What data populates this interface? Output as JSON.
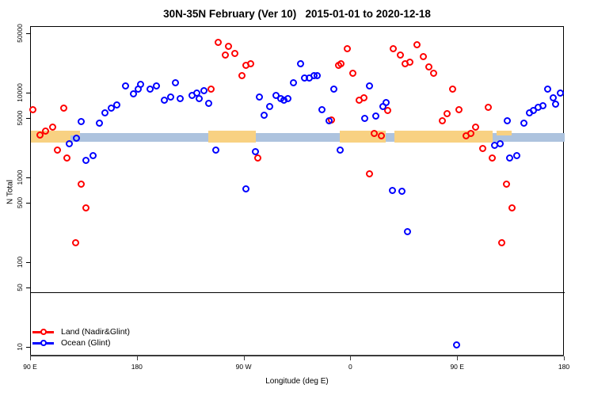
{
  "chart_data": {
    "type": "scatter",
    "title": "30N-35N February (Ver 10)   2015-01-01 to 2020-12-18",
    "xlabel": "Longitude (deg E)",
    "ylabel": "N Total",
    "x_axis": {
      "range_deg_e": [
        90,
        540
      ],
      "ticks": [
        {
          "lon": 90,
          "label": "90 E"
        },
        {
          "lon": 180,
          "label": "180"
        },
        {
          "lon": 270,
          "label": "90 W"
        },
        {
          "lon": 360,
          "label": "0"
        },
        {
          "lon": 450,
          "label": "90 E"
        },
        {
          "lon": 540,
          "label": "180"
        }
      ]
    },
    "y_axis": {
      "scale": "log",
      "range": [
        10,
        50000
      ],
      "ticks": [
        50000,
        10000,
        5000,
        1000,
        500,
        100,
        50,
        10
      ]
    },
    "hline_value": 45,
    "coast_band": {
      "comment": "horizontal land/ocean strip drawn near N=3500",
      "ocean_color": "#adc3de",
      "land_color": "#f8d182",
      "ocean_extent": [
        90,
        540
      ],
      "land_segments": [
        [
          90,
          123.5
        ],
        [
          239.5,
          279.5
        ],
        [
          350.5,
          389
        ],
        [
          396.5,
          479.5
        ]
      ],
      "land_partial_segments": [
        [
          121,
          131.5
        ],
        [
          482.5,
          495.5
        ]
      ],
      "legend_position": "bottom-left",
      "grid": "off"
    },
    "series": [
      {
        "id": "land",
        "name": "Land (Nadir&Glint)",
        "color": "#ff0000",
        "marker": "open-circle",
        "points": [
          [
            92,
            6300
          ],
          [
            118,
            6600
          ],
          [
            98,
            3200
          ],
          [
            103,
            3500
          ],
          [
            109,
            3900
          ],
          [
            113,
            2100
          ],
          [
            121,
            1700
          ],
          [
            133,
            840
          ],
          [
            137,
            440
          ],
          [
            128,
            170
          ],
          [
            242,
            11000
          ],
          [
            248,
            39000
          ],
          [
            254,
            28000
          ],
          [
            257,
            35000
          ],
          [
            262,
            29000
          ],
          [
            268,
            16000
          ],
          [
            272,
            21000
          ],
          [
            276,
            22000
          ],
          [
            282,
            1700
          ],
          [
            344,
            4800
          ],
          [
            350,
            21000
          ],
          [
            352,
            22000
          ],
          [
            357,
            33000
          ],
          [
            362,
            17000
          ],
          [
            367,
            8200
          ],
          [
            371,
            8700
          ],
          [
            376,
            1100
          ],
          [
            380,
            3300
          ],
          [
            386,
            3100
          ],
          [
            391,
            6200
          ],
          [
            396,
            33000
          ],
          [
            402,
            28000
          ],
          [
            406,
            22000
          ],
          [
            410,
            23000
          ],
          [
            416,
            37000
          ],
          [
            421,
            27000
          ],
          [
            426,
            20000
          ],
          [
            430,
            17000
          ],
          [
            437,
            4700
          ],
          [
            441,
            5700
          ],
          [
            446,
            11000
          ],
          [
            451,
            6300
          ],
          [
            457,
            3100
          ],
          [
            461,
            3300
          ],
          [
            465,
            3900
          ],
          [
            471,
            2200
          ],
          [
            476,
            6800
          ],
          [
            479,
            1700
          ],
          [
            487,
            170
          ],
          [
            491,
            840
          ],
          [
            496,
            440
          ]
        ]
      },
      {
        "id": "ocean",
        "name": "Ocean (Glint)",
        "color": "#0000ff",
        "marker": "open-circle",
        "points": [
          [
            133,
            4600
          ],
          [
            148,
            4400
          ],
          [
            123,
            2500
          ],
          [
            129,
            2900
          ],
          [
            137,
            1600
          ],
          [
            143,
            1800
          ],
          [
            153,
            5800
          ],
          [
            158,
            6600
          ],
          [
            163,
            7200
          ],
          [
            170,
            12000
          ],
          [
            177,
            9800
          ],
          [
            181,
            11000
          ],
          [
            183,
            12500
          ],
          [
            191,
            11000
          ],
          [
            196,
            12000
          ],
          [
            203,
            8200
          ],
          [
            208,
            8900
          ],
          [
            212,
            13000
          ],
          [
            216,
            8600
          ],
          [
            226,
            9300
          ],
          [
            230,
            10000
          ],
          [
            232,
            8600
          ],
          [
            236,
            10500
          ],
          [
            240,
            7500
          ],
          [
            246,
            2100
          ],
          [
            272,
            740
          ],
          [
            280,
            2000
          ],
          [
            283,
            8900
          ],
          [
            287,
            5400
          ],
          [
            292,
            6900
          ],
          [
            297,
            9300
          ],
          [
            301,
            8600
          ],
          [
            304,
            8200
          ],
          [
            307,
            8600
          ],
          [
            312,
            13000
          ],
          [
            318,
            22000
          ],
          [
            321,
            15000
          ],
          [
            325,
            15000
          ],
          [
            329,
            16000
          ],
          [
            332,
            16000
          ],
          [
            336,
            6300
          ],
          [
            342,
            4700
          ],
          [
            346,
            11000
          ],
          [
            351,
            2100
          ],
          [
            372,
            5000
          ],
          [
            376,
            12000
          ],
          [
            381,
            5300
          ],
          [
            387,
            6900
          ],
          [
            390,
            7700
          ],
          [
            395,
            710
          ],
          [
            403,
            690
          ],
          [
            408,
            230
          ],
          [
            449,
            10.5
          ],
          [
            481,
            2400
          ],
          [
            486,
            2500
          ],
          [
            492,
            4700
          ],
          [
            494,
            1700
          ],
          [
            500,
            1800
          ],
          [
            506,
            4400
          ],
          [
            511,
            5800
          ],
          [
            514,
            6200
          ],
          [
            518,
            6800
          ],
          [
            522,
            7100
          ],
          [
            526,
            11000
          ],
          [
            531,
            8700
          ],
          [
            533,
            7300
          ],
          [
            537,
            10000
          ]
        ]
      }
    ]
  }
}
